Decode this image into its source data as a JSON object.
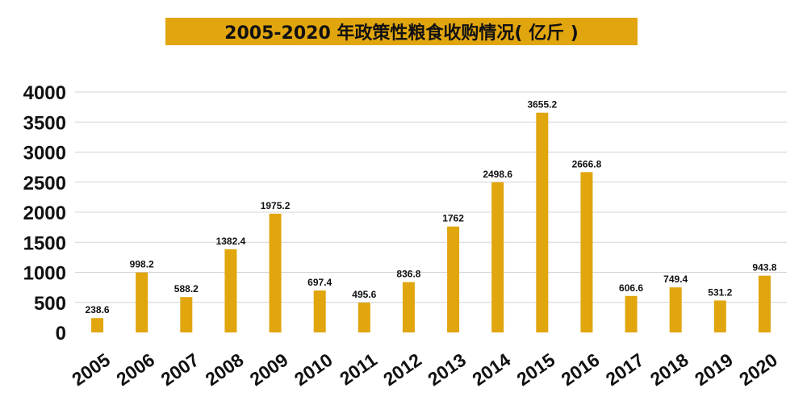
{
  "colors": {
    "bar": "#E1A50E",
    "title_bg": "#E1A50E",
    "grid": "#D4D4D4"
  },
  "chart_data": {
    "type": "bar",
    "title": "2005-2020 年政策性粮食收购情况( 亿斤 )",
    "xlabel": "",
    "ylabel": "",
    "categories": [
      "2005",
      "2006",
      "2007",
      "2008",
      "2009",
      "2010",
      "2011",
      "2012",
      "2013",
      "2014",
      "2015",
      "2016",
      "2017",
      "2018",
      "2019",
      "2020"
    ],
    "values": [
      238.6,
      998.2,
      588.2,
      1382.4,
      1975.2,
      697.4,
      495.6,
      836.8,
      1762,
      2498.6,
      3655.2,
      2666.8,
      606.6,
      749.4,
      531.2,
      943.8
    ],
    "value_labels": [
      "238.6",
      "998.2",
      "588.2",
      "1382.4",
      "1975.2",
      "697.4",
      "495.6",
      "836.8",
      "1762",
      "2498.6",
      "3655.2",
      "2666.8",
      "606.6",
      "749.4",
      "531.2",
      "943.8"
    ],
    "yticks": [
      "0",
      "500",
      "1000",
      "1500",
      "2000",
      "2500",
      "3000",
      "3500",
      "4000"
    ],
    "ylim": [
      0,
      4000
    ],
    "grid": true,
    "legend": "none"
  }
}
